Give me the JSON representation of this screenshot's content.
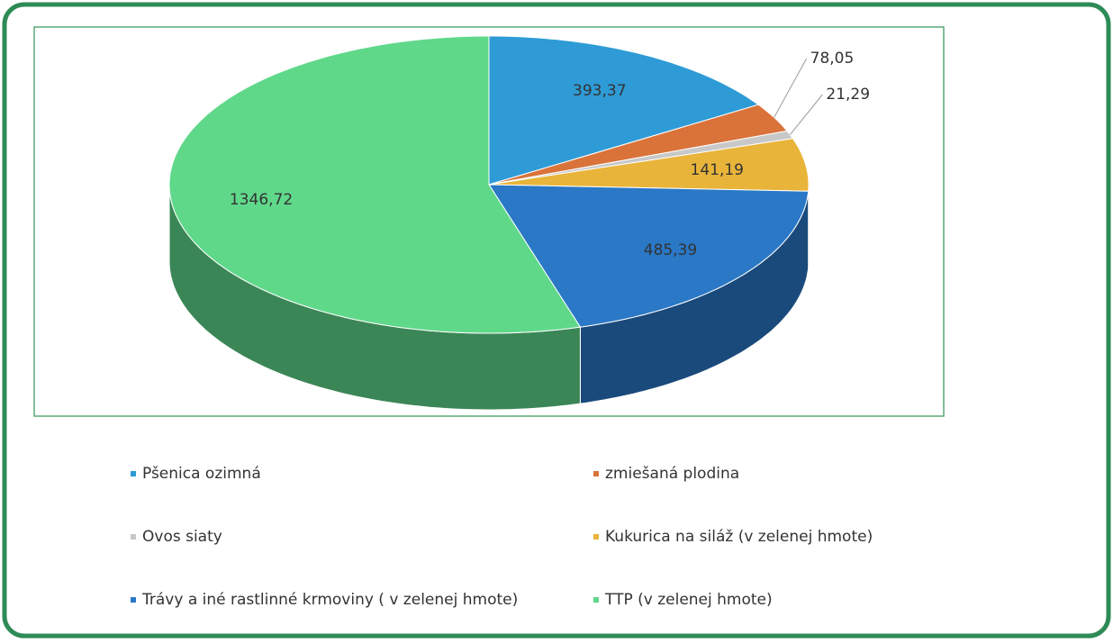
{
  "chart_data": {
    "type": "pie",
    "categories": [
      "Pšenica ozimná",
      "zmiešaná plodina",
      "Ovos siaty",
      "Kukurica na siláž (v zelenej hmote)",
      "Trávy a iné rastlinné krmoviny ( v zelenej hmote)",
      "TTP (v zelenej hmote)"
    ],
    "values": [
      393.37,
      78.05,
      21.29,
      141.19,
      485.39,
      1346.72
    ],
    "value_labels": [
      "393,37",
      "78,05",
      "21,29",
      "141,19",
      "485,39",
      "1346,72"
    ],
    "colors": [
      "#2e9bd6",
      "#d9733a",
      "#c8c8c8",
      "#e8b43a",
      "#2a78c6",
      "#5fd88a"
    ]
  }
}
